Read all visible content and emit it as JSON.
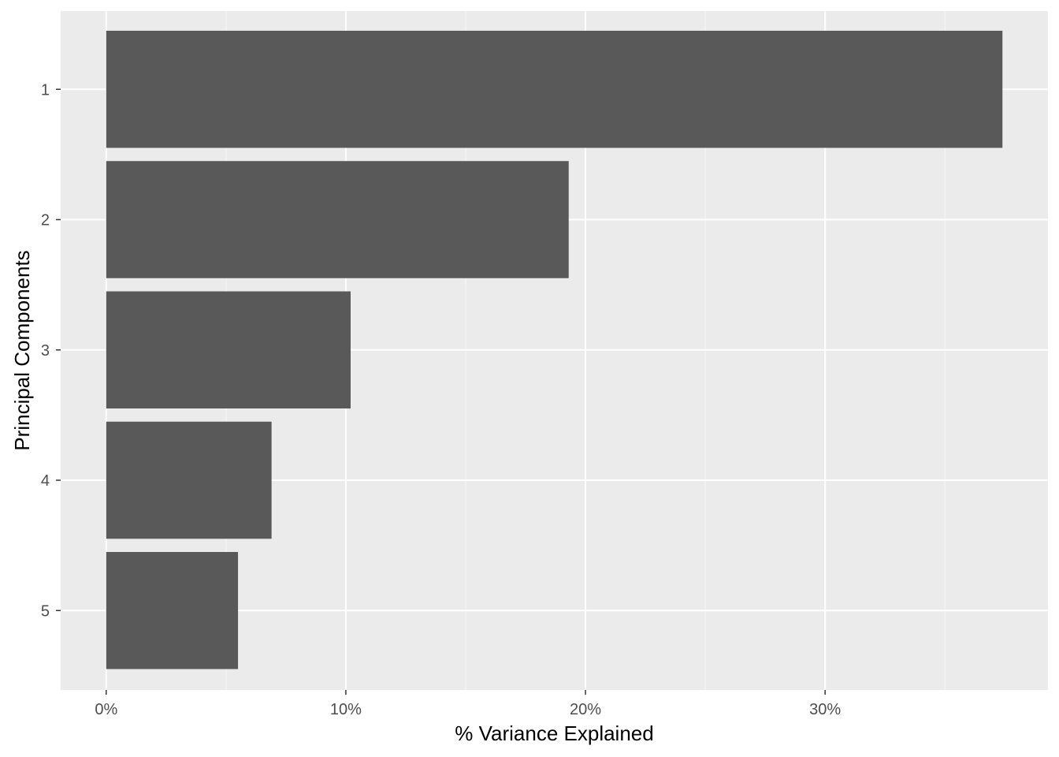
{
  "chart_data": {
    "type": "bar",
    "orientation": "horizontal",
    "categories": [
      "1",
      "2",
      "3",
      "4",
      "5"
    ],
    "values": [
      37.4,
      19.3,
      10.2,
      6.9,
      5.5
    ],
    "xlabel": "% Variance Explained",
    "ylabel": "Principal Components",
    "xlim": [
      -1.9,
      39.3
    ],
    "x_ticks": [
      0,
      10,
      20,
      30
    ],
    "x_tick_labels": [
      "0%",
      "10%",
      "20%",
      "30%"
    ],
    "grid": true,
    "legend": "none",
    "colors": {
      "bar": "#595959",
      "panel_background": "#EBEBEB",
      "grid_major": "#FFFFFF",
      "grid_minor": "#F5F5F5",
      "tick_text": "#4D4D4D",
      "tick_mark": "#333333",
      "title_text": "#000000"
    }
  }
}
